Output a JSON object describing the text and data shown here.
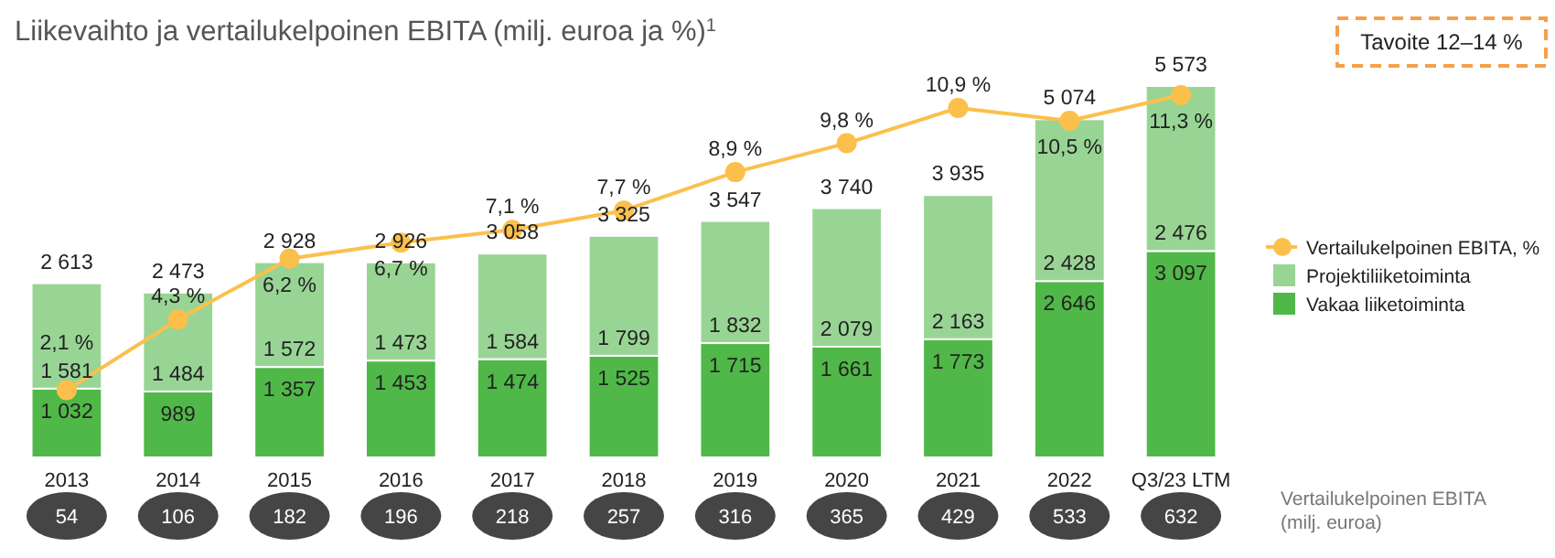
{
  "chart_data": [
    {
      "type": "bar",
      "title": "Liikevaihto ja vertailukelpoinen EBITA (milj. euroa ja %)$^{1}$",
      "categories": [
        "2013",
        "2014",
        "2015",
        "2016",
        "2017",
        "2018",
        "2019",
        "2020",
        "2021",
        "2022",
        "Q3/23 LTM"
      ],
      "stacked": true,
      "tick_labels": "x",
      "legend": "right",
      "series": [
        {
          "name": "Vakaa liiketoiminta",
          "color": "#50b848",
          "values": [
            1032,
            989,
            1357,
            1453,
            1474,
            1525,
            1715,
            1661,
            1773,
            2646,
            3097
          ],
          "value_labels": [
            "1 032",
            "989",
            "1 357",
            "1 453",
            "1 474",
            "1 525",
            "1 715",
            "1 661",
            "1 773",
            "2 646",
            "3 097"
          ]
        },
        {
          "name": "Projektiliiketoiminta",
          "color": "#98d594",
          "values": [
            1581,
            1484,
            1572,
            1473,
            1584,
            1799,
            1832,
            2079,
            2163,
            2428,
            2476
          ],
          "value_labels": [
            "1 581",
            "1 484",
            "1 572",
            "1 473",
            "1 584",
            "1 799",
            "1 832",
            "2 079",
            "2 163",
            "2 428",
            "2 476"
          ]
        },
        {
          "name": "Vertailukelpoinen EBITA, %",
          "type": "line",
          "axis": "y2",
          "color": "#fbc04c",
          "marker": "circle",
          "values": [
            2.1,
            4.3,
            6.2,
            6.7,
            7.1,
            7.7,
            8.9,
            9.8,
            10.9,
            10.5,
            11.3
          ],
          "value_labels": [
            "2,1 %",
            "4,3 %",
            "6,2 %",
            "6,7 %",
            "7,1 %",
            "7,7 %",
            "8,9 %",
            "9,8 %",
            "10,9 %",
            "10,5 %",
            "11,3 %"
          ]
        }
      ],
      "totals": [
        "2 613",
        "2 473",
        "2 928",
        "2 926",
        "3 058",
        "3 325",
        "3 547",
        "3 740",
        "3 935",
        "5 074",
        "5 573"
      ],
      "annotations": [
        "Tavoite 12–14 %"
      ]
    },
    {
      "type": "other",
      "title": "Vertailukelpoinen EBITA\n(milj. euroa)",
      "categories": [
        null,
        null,
        null,
        null,
        null,
        null,
        null,
        null,
        null,
        null,
        null
      ],
      "values": [
        54,
        106,
        182,
        196,
        218,
        257,
        316,
        365,
        429,
        533,
        632
      ],
      "data_labels": true
    }
  ]
}
